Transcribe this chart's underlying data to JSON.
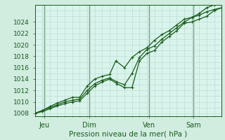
{
  "background_color": "#d0ede0",
  "plot_bg_color": "#d8f4ec",
  "grid_color_minor": "#b8d8cc",
  "grid_color_major": "#a0c8b8",
  "line_color": "#1a5c1a",
  "vline_color": "#2a6030",
  "xlabel": "Pression niveau de la mer( hPa )",
  "ylim": [
    1007.5,
    1027.0
  ],
  "xlim": [
    0,
    300
  ],
  "yticks": [
    1008,
    1010,
    1012,
    1014,
    1016,
    1018,
    1020,
    1022,
    1024
  ],
  "day_labels": [
    "Jeu",
    "Dim",
    "Ven",
    "Sam"
  ],
  "day_positions": [
    15,
    87,
    183,
    255
  ],
  "vline_positions": [
    15,
    87,
    183,
    255
  ],
  "minor_yticks": [
    1008,
    1009,
    1010,
    1011,
    1012,
    1013,
    1014,
    1015,
    1016,
    1017,
    1018,
    1019,
    1020,
    1021,
    1022,
    1023,
    1024,
    1025,
    1026,
    1027
  ],
  "minor_xticks": [
    0,
    12,
    24,
    36,
    48,
    60,
    72,
    84,
    96,
    108,
    120,
    132,
    144,
    156,
    168,
    180,
    192,
    204,
    216,
    228,
    240,
    252,
    264,
    276,
    288,
    300
  ],
  "line1_x": [
    0,
    12,
    24,
    36,
    48,
    60,
    72,
    84,
    96,
    108,
    120,
    132,
    144,
    156,
    168,
    180,
    192,
    204,
    216,
    228,
    240,
    252,
    264,
    276,
    288,
    300
  ],
  "line1_y": [
    1008.0,
    1008.5,
    1009.0,
    1009.5,
    1010.0,
    1010.3,
    1010.5,
    1012.0,
    1013.2,
    1013.8,
    1014.2,
    1013.5,
    1013.0,
    1015.0,
    1017.8,
    1019.2,
    1019.8,
    1021.0,
    1022.0,
    1023.0,
    1024.0,
    1024.8,
    1025.2,
    1025.8,
    1026.2,
    1026.5
  ],
  "line2_x": [
    0,
    12,
    24,
    36,
    48,
    60,
    72,
    84,
    96,
    108,
    120,
    130,
    144,
    156,
    168,
    180,
    192,
    204,
    216,
    228,
    240,
    252,
    264,
    276,
    288,
    300
  ],
  "line2_y": [
    1008.0,
    1008.5,
    1009.2,
    1009.8,
    1010.3,
    1010.8,
    1010.8,
    1012.8,
    1014.0,
    1014.5,
    1014.8,
    1017.2,
    1016.0,
    1017.8,
    1018.8,
    1019.5,
    1020.8,
    1021.8,
    1022.5,
    1023.5,
    1024.5,
    1024.8,
    1025.5,
    1026.5,
    1027.0,
    1027.2
  ],
  "line3_x": [
    0,
    12,
    24,
    36,
    48,
    60,
    72,
    84,
    96,
    108,
    120,
    132,
    144,
    156,
    168,
    180,
    192,
    204,
    216,
    228,
    240,
    252,
    264,
    276,
    288,
    300
  ],
  "line3_y": [
    1008.0,
    1008.3,
    1008.8,
    1009.3,
    1009.7,
    1010.0,
    1010.2,
    1011.5,
    1012.8,
    1013.5,
    1014.0,
    1013.2,
    1012.5,
    1012.5,
    1017.2,
    1018.5,
    1019.0,
    1020.5,
    1021.5,
    1022.5,
    1023.8,
    1024.0,
    1024.5,
    1025.0,
    1026.0,
    1026.5
  ]
}
